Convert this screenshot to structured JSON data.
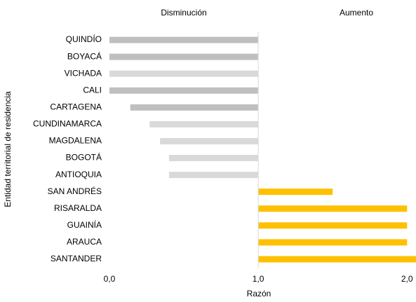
{
  "chart_data": {
    "type": "bar",
    "orientation": "horizontal",
    "annotations": [
      "Disminución",
      "Aumento"
    ],
    "xlabel": "Razón",
    "ylabel": "Entidad territorial de residencia",
    "categories": [
      "QUINDÍO",
      "BOYACÁ",
      "VICHADA",
      "CALI",
      "CARTAGENA",
      "CUNDINAMARCA",
      "MAGDALENA",
      "BOGOTÁ",
      "ANTIOQUIA",
      "SAN ANDRÉS",
      "RISARALDA",
      "GUAINÍA",
      "ARAUCA",
      "SANTANDER"
    ],
    "values": [
      0.0,
      0.0,
      0.0,
      0.0,
      0.14,
      0.27,
      0.34,
      0.4,
      0.4,
      1.5,
      2.0,
      2.0,
      2.0,
      2.06
    ],
    "colors": [
      "#bfbfbf",
      "#bfbfbf",
      "#d9d9d9",
      "#bfbfbf",
      "#bfbfbf",
      "#d9d9d9",
      "#d9d9d9",
      "#d9d9d9",
      "#d9d9d9",
      "#ffc000",
      "#ffc000",
      "#ffc000",
      "#ffc000",
      "#ffc000"
    ],
    "base": 1.0,
    "xlim": [
      0,
      2.06
    ],
    "xticks": [
      {
        "value": 0,
        "label": "0,0"
      },
      {
        "value": 1,
        "label": "1,0"
      },
      {
        "value": 2,
        "label": "2,0"
      }
    ]
  }
}
